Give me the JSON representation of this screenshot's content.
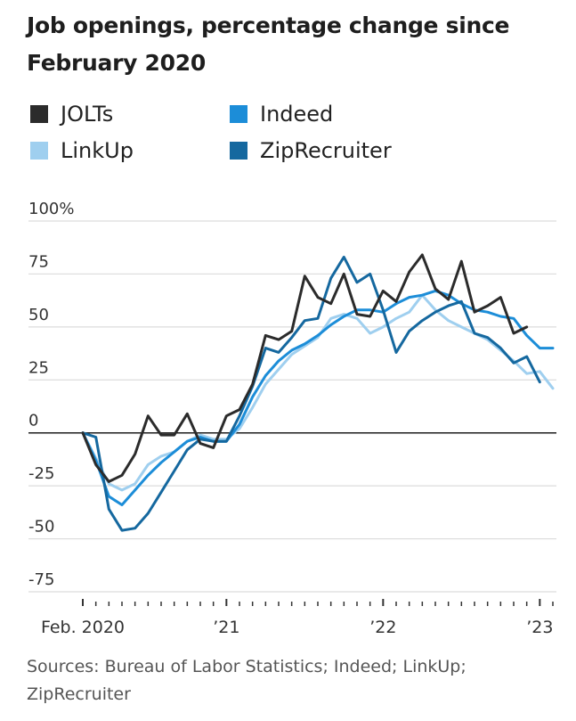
{
  "source": "Sources: Bureau of Labor Statistics; Indeed; LinkUp; ZipRecruiter",
  "chart_data": {
    "type": "line",
    "title": "Job openings, percentage change since February 2020",
    "x_unit": "month (index, 0 = Feb. 2020)",
    "y_ticks": [
      "100%",
      "75",
      "50",
      "25",
      "0",
      "-25",
      "-50",
      "-75"
    ],
    "y_tick_values": [
      100,
      75,
      50,
      25,
      0,
      -25,
      -50,
      -75
    ],
    "ylim": [
      -75,
      100
    ],
    "x_tick_labels": [
      {
        "label": "Feb. 2020",
        "month": 0
      },
      {
        "label": "’21",
        "month": 11
      },
      {
        "label": "’22",
        "month": 23
      },
      {
        "label": "’23",
        "month": 35
      }
    ],
    "x_range": [
      0,
      36
    ],
    "grid": true,
    "legend_position": "top-left",
    "series": [
      {
        "name": "JOLTs",
        "color": "#2b2b2b",
        "x": [
          0,
          1,
          2,
          3,
          4,
          5,
          6,
          7,
          8,
          9,
          10,
          11,
          12,
          13,
          14,
          15,
          16,
          17,
          18,
          19,
          20,
          21,
          22,
          23,
          24,
          25,
          26,
          27,
          28,
          29,
          30,
          31,
          32,
          33,
          34
        ],
        "y": [
          0,
          -15,
          -23,
          -20,
          -10,
          8,
          -1,
          -1,
          9,
          -5,
          -7,
          8,
          11,
          23,
          46,
          44,
          48,
          74,
          64,
          61,
          75,
          56,
          55,
          67,
          62,
          76,
          84,
          68,
          63,
          81,
          57,
          60,
          64,
          47,
          50
        ]
      },
      {
        "name": "Indeed",
        "color": "#1c8dd8",
        "x": [
          0,
          1,
          2,
          3,
          4,
          5,
          6,
          7,
          8,
          9,
          10,
          11,
          12,
          13,
          14,
          15,
          16,
          17,
          18,
          19,
          20,
          21,
          22,
          23,
          24,
          25,
          26,
          27,
          28,
          29,
          30,
          31,
          32,
          33,
          34,
          35,
          36
        ],
        "y": [
          0,
          -13,
          -30,
          -34,
          -27,
          -20,
          -14,
          -9,
          -4,
          -2,
          -4,
          -4,
          4,
          17,
          27,
          34,
          39,
          42,
          46,
          51,
          55,
          58,
          58,
          57,
          61,
          64,
          65,
          67,
          65,
          61,
          58,
          57,
          55,
          54,
          46,
          40,
          40
        ]
      },
      {
        "name": "LinkUp",
        "color": "#9fcfef",
        "x": [
          0,
          1,
          2,
          3,
          4,
          5,
          6,
          7,
          8,
          9,
          10,
          11,
          12,
          13,
          14,
          15,
          16,
          17,
          18,
          19,
          20,
          21,
          22,
          23,
          24,
          25,
          26,
          27,
          28,
          29,
          30,
          31,
          32,
          33,
          34,
          35,
          36
        ],
        "y": [
          0,
          -12,
          -24,
          -27,
          -24,
          -15,
          -11,
          -9,
          -4,
          -1,
          -3,
          -3,
          2,
          12,
          23,
          30,
          37,
          41,
          45,
          54,
          56,
          54,
          47,
          50,
          54,
          57,
          65,
          58,
          53,
          50,
          47,
          44,
          39,
          34,
          28,
          29,
          21
        ]
      },
      {
        "name": "ZipRecruiter",
        "color": "#15689f",
        "x": [
          0,
          1,
          2,
          3,
          4,
          5,
          6,
          7,
          8,
          9,
          10,
          11,
          12,
          13,
          14,
          15,
          16,
          17,
          18,
          19,
          20,
          21,
          22,
          23,
          24,
          25,
          26,
          27,
          28,
          29,
          30,
          31,
          32,
          33,
          34,
          35
        ],
        "y": [
          0,
          -2,
          -36,
          -46,
          -45,
          -38,
          -28,
          -18,
          -8,
          -3,
          -4,
          -4,
          8,
          22,
          40,
          38,
          45,
          53,
          54,
          73,
          83,
          71,
          75,
          58,
          38,
          48,
          53,
          57,
          60,
          62,
          47,
          45,
          40,
          33,
          36,
          24
        ]
      }
    ]
  }
}
